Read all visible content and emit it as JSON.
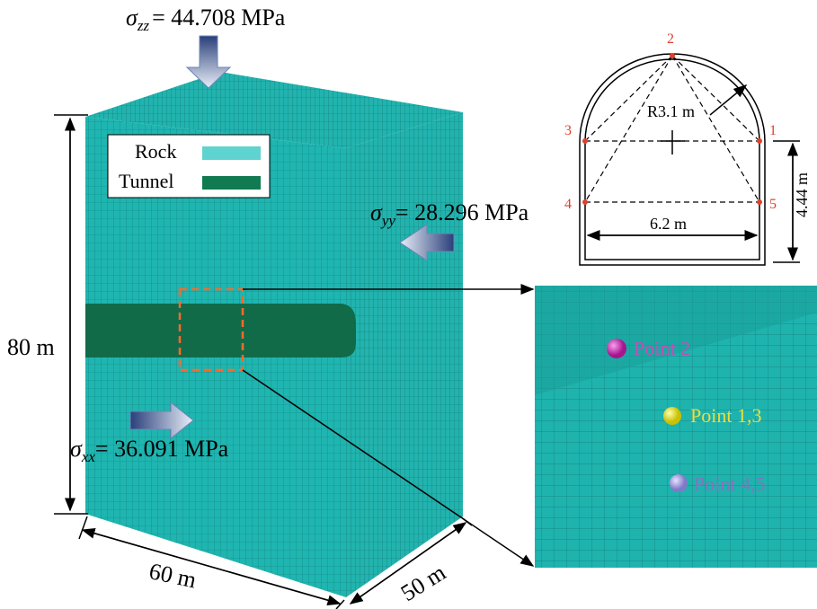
{
  "stresses": {
    "zz": {
      "symbol": "σ",
      "sub": "zz",
      "text": "= 44.708 MPa"
    },
    "yy": {
      "symbol": "σ",
      "sub": "yy",
      "text": "= 28.296 MPa"
    },
    "xx": {
      "symbol": "σ",
      "sub": "xx",
      "text": "= 36.091 MPa"
    }
  },
  "legend": [
    "Rock",
    "Tunnel"
  ],
  "dimensions": {
    "height": "80 m",
    "width": "60 m",
    "depth": "50 m"
  },
  "section": {
    "radius": "R3.1 m",
    "span": "6.2 m",
    "wall": "4.44 m",
    "points": [
      "1",
      "2",
      "3",
      "4",
      "5"
    ]
  },
  "zoom": {
    "points": [
      "Point 2",
      "Point 1,3",
      "Point 4,5"
    ]
  }
}
